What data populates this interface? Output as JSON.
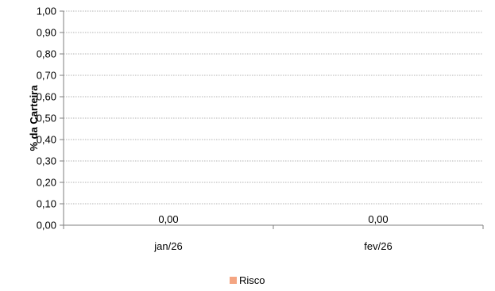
{
  "chart_data": {
    "type": "bar",
    "categories": [
      "jan/26",
      "fev/26"
    ],
    "series": [
      {
        "name": "Risco",
        "values": [
          0.0,
          0.0
        ],
        "color": "#f4a582"
      }
    ],
    "data_labels": [
      "0,00",
      "0,00"
    ],
    "ylabel": "% da Carteira",
    "ylim": [
      0,
      1
    ],
    "yticks": [
      "0,00",
      "0,10",
      "0,20",
      "0,30",
      "0,40",
      "0,50",
      "0,60",
      "0,70",
      "0,80",
      "0,90",
      "1,00"
    ],
    "grid": true,
    "legend": "bottom"
  }
}
